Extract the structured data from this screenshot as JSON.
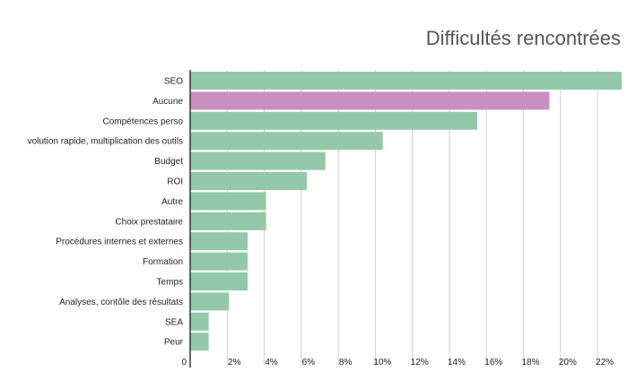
{
  "chart_data": {
    "type": "bar",
    "orientation": "horizontal",
    "title": "Difficultés rencontrées",
    "xlabel": "",
    "ylabel": "",
    "categories": [
      "SEO",
      "Aucune",
      "Compétences perso",
      "volution rapide, multiplication des outils",
      "Budget",
      "ROI",
      "Autre",
      "Choix prestataire",
      "Procédures internes et externes",
      "Formation",
      "Temps",
      "Analyses, contôle des résultats",
      "SEA",
      "Peur"
    ],
    "values": [
      23.3,
      19.4,
      15.5,
      10.4,
      7.3,
      6.3,
      4.1,
      4.1,
      3.1,
      3.1,
      3.1,
      2.1,
      1.0,
      1.0
    ],
    "highlight_category": "Aucune",
    "xlim": [
      0,
      23.3
    ],
    "xticks": [
      0,
      2,
      4,
      6,
      8,
      10,
      12,
      14,
      16,
      18,
      20,
      22
    ],
    "xtick_labels": [
      "0",
      "2%",
      "4%",
      "6%",
      "8%",
      "10%",
      "12%",
      "14%",
      "16%",
      "18%",
      "20%",
      "22%"
    ],
    "grid": "vertical",
    "legend": "none",
    "colors": {
      "bar": "#93c9a9",
      "highlight": "#c98fbf",
      "grid": "#d0d0d0",
      "axis": "#333333",
      "title": "#555555"
    }
  }
}
